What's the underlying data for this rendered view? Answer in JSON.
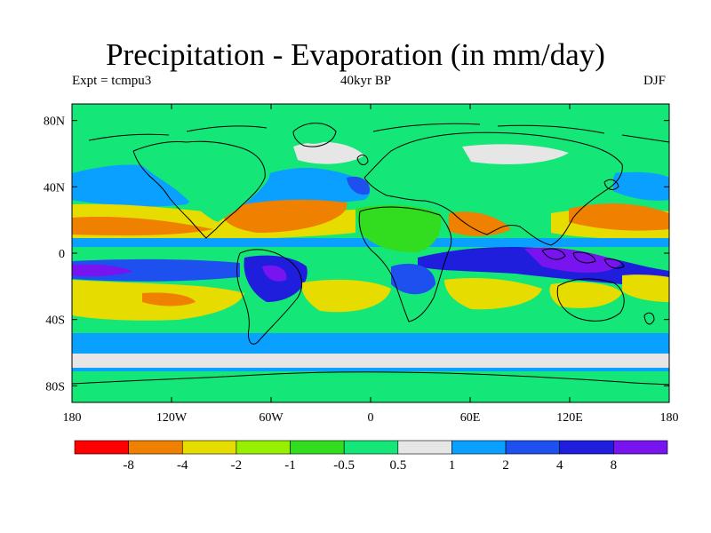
{
  "title": "Precipitation - Evaporation (in mm/day)",
  "subtitle_left": "Expt = tcmpu3",
  "subtitle_center": "40kyr BP",
  "subtitle_right": "DJF",
  "map": {
    "lon_ticks": [
      "180",
      "120W",
      "60W",
      "0",
      "60E",
      "120E",
      "180"
    ],
    "lat_ticks": [
      "80N",
      "40N",
      "0",
      "40S",
      "80S"
    ],
    "lon_range": [
      -180,
      180
    ],
    "lat_range": [
      -90,
      90
    ]
  },
  "colorbar": {
    "colors": [
      "#ff0000",
      "#f08000",
      "#e6dc00",
      "#96f000",
      "#32dc1e",
      "#14e678",
      "#e6e6e6",
      "#0aa0ff",
      "#1e50f0",
      "#1e1edc",
      "#7814f0"
    ],
    "labels": [
      "-8",
      "-4",
      "-2",
      "-1",
      "-0.5",
      "0.5",
      "1",
      "2",
      "4",
      "8"
    ]
  },
  "colors": {
    "background": "#14e678",
    "coastline": "#000000"
  }
}
